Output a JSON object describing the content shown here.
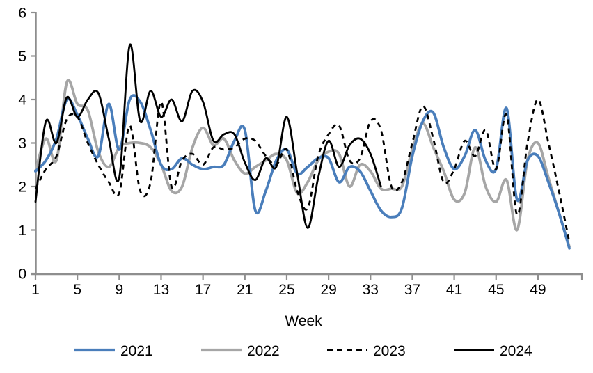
{
  "chart_data": {
    "type": "line",
    "title": "",
    "xlabel": "Week",
    "ylabel": "",
    "xlim": [
      1,
      53
    ],
    "ylim": [
      0,
      6
    ],
    "grid": false,
    "legend_position": "bottom",
    "axis_color": "#8e8e8e",
    "x_ticks": [
      1,
      5,
      9,
      13,
      17,
      21,
      25,
      29,
      33,
      37,
      41,
      45,
      49
    ],
    "y_ticks": [
      0,
      1,
      2,
      3,
      4,
      5,
      6
    ],
    "x_unit": "week_number",
    "series": [
      {
        "name": "2021",
        "color": "#4a7ebb",
        "style": "solid",
        "start_week": 1,
        "values": [
          2.35,
          2.6,
          3.1,
          4.0,
          3.65,
          3.1,
          2.7,
          3.9,
          2.85,
          4.0,
          3.95,
          3.3,
          2.5,
          2.4,
          2.65,
          2.5,
          2.4,
          2.45,
          2.5,
          3.05,
          3.3,
          1.45,
          1.9,
          2.6,
          2.85,
          2.3,
          2.45,
          2.65,
          2.65,
          2.1,
          2.45,
          2.35,
          1.9,
          1.45,
          1.3,
          1.5,
          2.7,
          3.5,
          3.7,
          2.9,
          2.4,
          2.7,
          3.3,
          2.6,
          2.4,
          3.8,
          1.7,
          2.6,
          2.7,
          2.1,
          1.4,
          0.58
        ]
      },
      {
        "name": "2022",
        "color": "#a6a6a6",
        "style": "solid",
        "start_week": 1,
        "values": [
          2.35,
          3.1,
          2.6,
          4.4,
          3.9,
          3.75,
          2.8,
          2.45,
          2.9,
          3.0,
          3.0,
          2.9,
          2.5,
          1.9,
          2.0,
          2.9,
          3.35,
          2.95,
          3.1,
          2.6,
          2.3,
          2.45,
          2.6,
          2.75,
          2.6,
          1.85,
          2.1,
          2.6,
          2.8,
          2.75,
          2.0,
          2.5,
          2.35,
          1.95,
          1.95,
          2.0,
          2.85,
          3.45,
          2.9,
          2.35,
          1.7,
          1.85,
          2.9,
          2.0,
          1.65,
          2.15,
          1.0,
          2.6,
          3.0,
          2.2,
          1.4,
          0.62
        ]
      },
      {
        "name": "2023",
        "color": "#000000",
        "style": "dashed",
        "start_week": 1,
        "values": [
          1.95,
          2.4,
          2.7,
          3.55,
          3.6,
          3.0,
          2.5,
          2.1,
          1.85,
          3.4,
          1.9,
          2.1,
          3.95,
          2.0,
          2.6,
          2.75,
          2.5,
          2.9,
          2.85,
          2.9,
          3.1,
          3.05,
          2.7,
          2.5,
          2.85,
          1.9,
          1.5,
          2.7,
          3.2,
          3.4,
          2.6,
          2.65,
          3.5,
          3.3,
          2.0,
          2.1,
          3.0,
          3.85,
          3.1,
          2.1,
          2.4,
          3.05,
          2.7,
          3.3,
          2.4,
          3.65,
          1.35,
          3.0,
          4.0,
          3.0,
          1.9,
          0.72
        ]
      },
      {
        "name": "2024",
        "color": "#000000",
        "style": "solid",
        "start_week": 1,
        "values": [
          1.65,
          3.5,
          3.0,
          4.05,
          3.6,
          4.0,
          4.15,
          3.1,
          2.2,
          5.25,
          3.5,
          4.2,
          3.6,
          4.0,
          3.5,
          4.2,
          3.95,
          3.05,
          3.2,
          3.2,
          2.55,
          2.15,
          2.65,
          2.45,
          3.6,
          2.3,
          1.05,
          2.2,
          3.05,
          2.45,
          2.95,
          3.1,
          2.75,
          2.0
        ]
      }
    ]
  }
}
